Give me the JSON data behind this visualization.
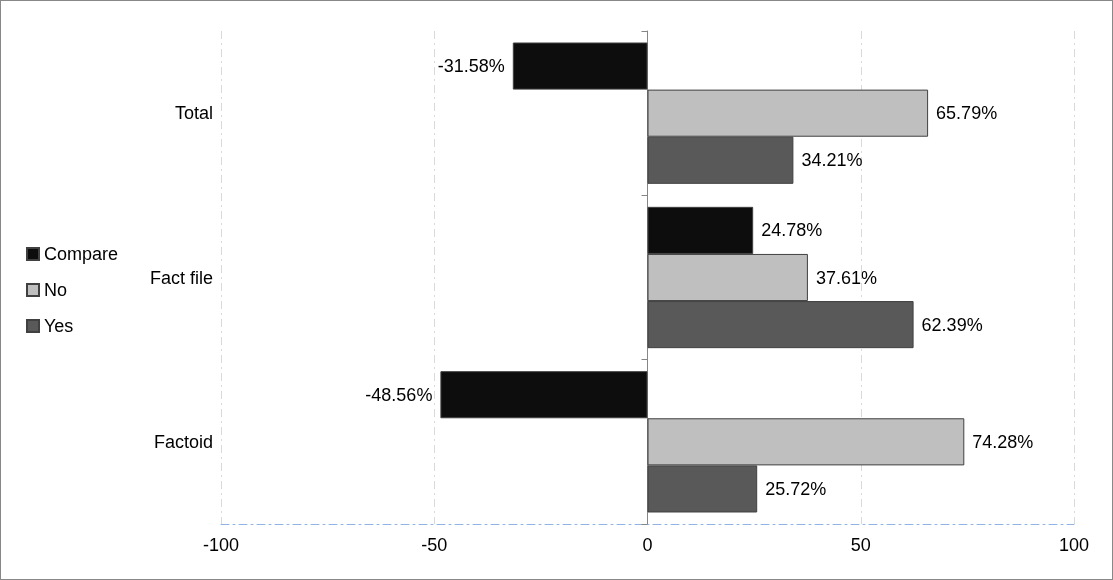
{
  "chart_data": {
    "type": "bar",
    "orientation": "horizontal",
    "categories": [
      "Total",
      "Fact file",
      "Factoid"
    ],
    "series": [
      {
        "name": "Compare",
        "color": "#0d0d0d",
        "values": [
          -31.58,
          24.78,
          -48.56
        ],
        "value_labels": [
          "-31.58%",
          "24.78%",
          "-48.56%"
        ]
      },
      {
        "name": "No",
        "color": "#bfbfbf",
        "values": [
          65.79,
          37.61,
          74.28
        ],
        "value_labels": [
          "65.79%",
          "37.61%",
          "74.28%"
        ]
      },
      {
        "name": "Yes",
        "color": "#595959",
        "values": [
          34.21,
          62.39,
          25.72
        ],
        "value_labels": [
          "34.21%",
          "62.39%",
          "25.72%"
        ]
      }
    ],
    "xlim": [
      -100,
      100
    ],
    "xticks": [
      -100,
      -50,
      0,
      50,
      100
    ],
    "grid": "x",
    "legend": "left"
  }
}
